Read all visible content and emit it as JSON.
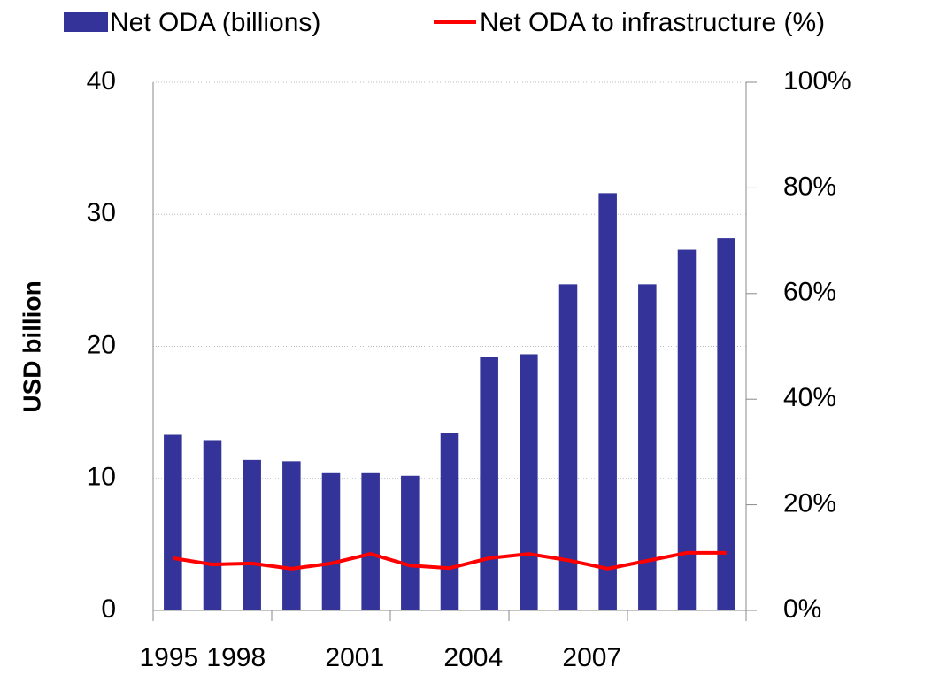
{
  "chart_data": {
    "type": "bar",
    "y_label": "USD billion",
    "categories": [
      "1995",
      null,
      null,
      "1998",
      null,
      null,
      "2001",
      null,
      null,
      "2004",
      null,
      null,
      "2007",
      null,
      null
    ],
    "series": [
      {
        "name": "Net ODA (billions)",
        "color": "#333399",
        "type": "bar",
        "values": [
          13.3,
          12.9,
          11.4,
          11.3,
          10.4,
          10.4,
          10.2,
          13.4,
          19.2,
          19.4,
          24.7,
          31.6,
          24.7,
          27.3,
          28.2
        ]
      },
      {
        "name": "Net ODA to infrastructure (%)",
        "color": "#ff0000",
        "type": "line",
        "axis": "y2",
        "values": [
          9.9,
          8.7,
          8.9,
          7.9,
          8.9,
          10.7,
          8.5,
          8.0,
          9.9,
          10.7,
          9.5,
          7.9,
          9.4,
          10.9,
          10.9
        ]
      }
    ],
    "ylim": [
      0,
      40
    ],
    "yticks": [
      0,
      10,
      20,
      30,
      40
    ],
    "y2lim": [
      0,
      100
    ],
    "y2ticks": [
      {
        "value": 0,
        "label": "0%"
      },
      {
        "value": 20,
        "label": "20%"
      },
      {
        "value": 40,
        "label": "40%"
      },
      {
        "value": 60,
        "label": "60%"
      },
      {
        "value": 80,
        "label": "80%"
      },
      {
        "value": 100,
        "label": "100%"
      }
    ],
    "grid": true,
    "legend": "top"
  }
}
